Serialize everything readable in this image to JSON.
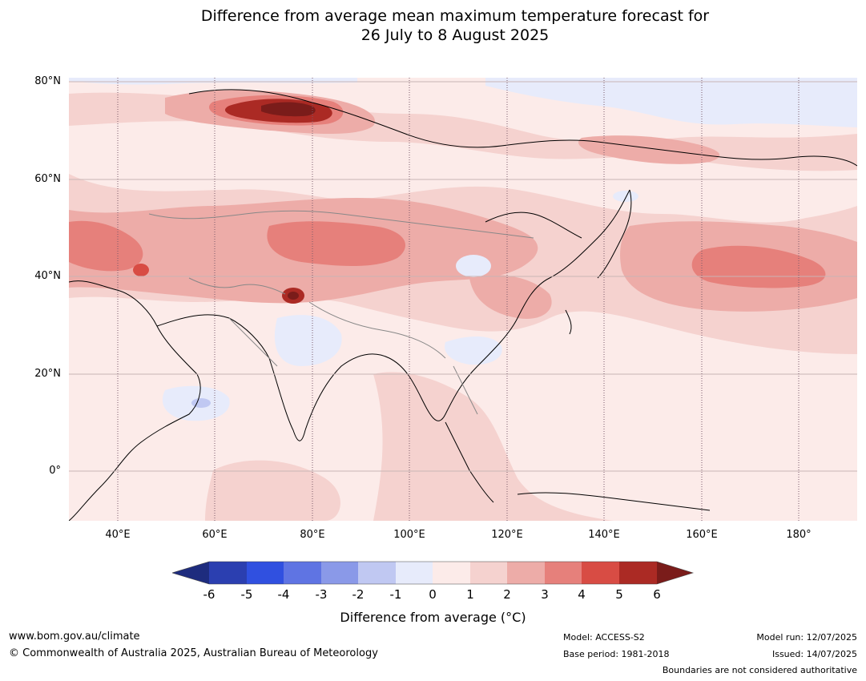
{
  "title": {
    "line1": "Difference from average mean maximum temperature forecast for",
    "line2": "26 July to 8 August 2025"
  },
  "map": {
    "lat_labels": [
      "80°N",
      "60°N",
      "40°N",
      "20°N",
      "0°"
    ],
    "lon_labels": [
      "40°E",
      "60°E",
      "80°E",
      "100°E",
      "120°E",
      "140°E",
      "160°E",
      "180°"
    ],
    "extent": {
      "lon": [
        30,
        192
      ],
      "lat": [
        -10,
        81
      ]
    }
  },
  "colorbar": {
    "label": "Difference from average (°C)",
    "ticks": [
      "-6",
      "-5",
      "-4",
      "-3",
      "-2",
      "-1",
      "0",
      "1",
      "2",
      "3",
      "4",
      "5",
      "6"
    ],
    "colors": [
      "#1e2c7e",
      "#2b3fb0",
      "#3050e0",
      "#5f74e3",
      "#8a99e8",
      "#c0c8f2",
      "#e7ebfb",
      "#fcebe9",
      "#f5d2cf",
      "#edaca8",
      "#e6807b",
      "#d84c44",
      "#ab2a24",
      "#7a1c1a"
    ]
  },
  "footer": {
    "website": "www.bom.gov.au/climate",
    "copyright": "© Commonwealth of Australia 2025, Australian Bureau of Meteorology",
    "model": "Model: ACCESS-S2",
    "base_period": "Base period: 1981-2018",
    "model_run": "Model run: 12/07/2025",
    "issued": "Issued: 14/07/2025",
    "disclaimer": "Boundaries are not considered authoritative"
  }
}
